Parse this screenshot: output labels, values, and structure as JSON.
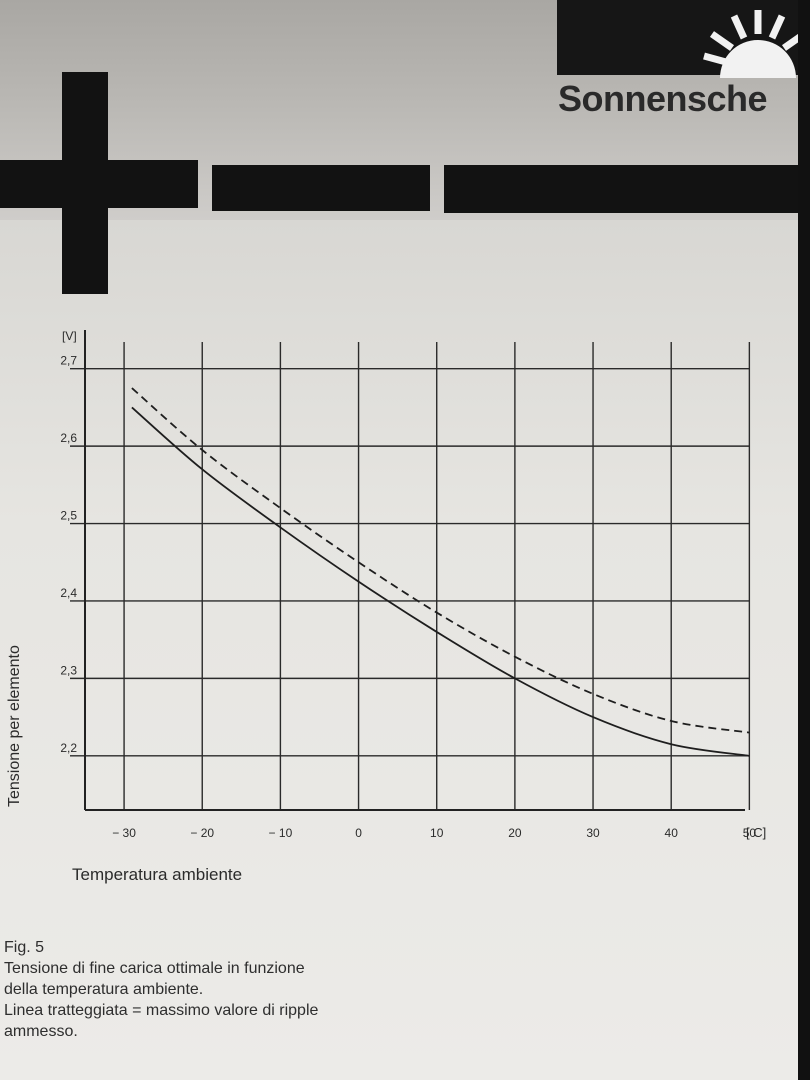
{
  "brand": {
    "name": "Sonnensche"
  },
  "figure": {
    "label": "Fig. 5",
    "caption_lines": [
      "Tensione di fine carica ottimale in funzione",
      "della temperatura ambiente.",
      "Linea tratteggiata = massimo valore di ripple",
      "ammesso."
    ]
  },
  "chart_data": {
    "type": "line",
    "title": "",
    "xlabel": "Temperatura ambiente",
    "ylabel": "Tensione per elemento",
    "x_unit": "[ C]",
    "y_unit": "[V]",
    "xlim": [
      -35,
      52
    ],
    "ylim": [
      2.13,
      2.75
    ],
    "x_ticks": [
      -30,
      -20,
      -10,
      0,
      10,
      20,
      30,
      40,
      50
    ],
    "x_tick_labels": [
      "− 30",
      "− 20",
      "− 10",
      "0",
      "10",
      "20",
      "30",
      "40",
      "50"
    ],
    "y_ticks": [
      2.2,
      2.3,
      2.4,
      2.5,
      2.6,
      2.7
    ],
    "y_tick_labels": [
      "2,2",
      "2,3",
      "2,4",
      "2,5",
      "2,6",
      "2,7"
    ],
    "grid": true,
    "series": [
      {
        "style": "solid",
        "x": [
          -29,
          -20,
          -10,
          0,
          10,
          20,
          30,
          40,
          50
        ],
        "y": [
          2.65,
          2.57,
          2.495,
          2.425,
          2.36,
          2.3,
          2.25,
          2.215,
          2.2
        ]
      },
      {
        "style": "dashed",
        "x": [
          -29,
          -20,
          -10,
          0,
          10,
          20,
          30,
          40,
          50
        ],
        "y": [
          2.675,
          2.595,
          2.52,
          2.45,
          2.385,
          2.328,
          2.28,
          2.245,
          2.23
        ]
      }
    ]
  }
}
